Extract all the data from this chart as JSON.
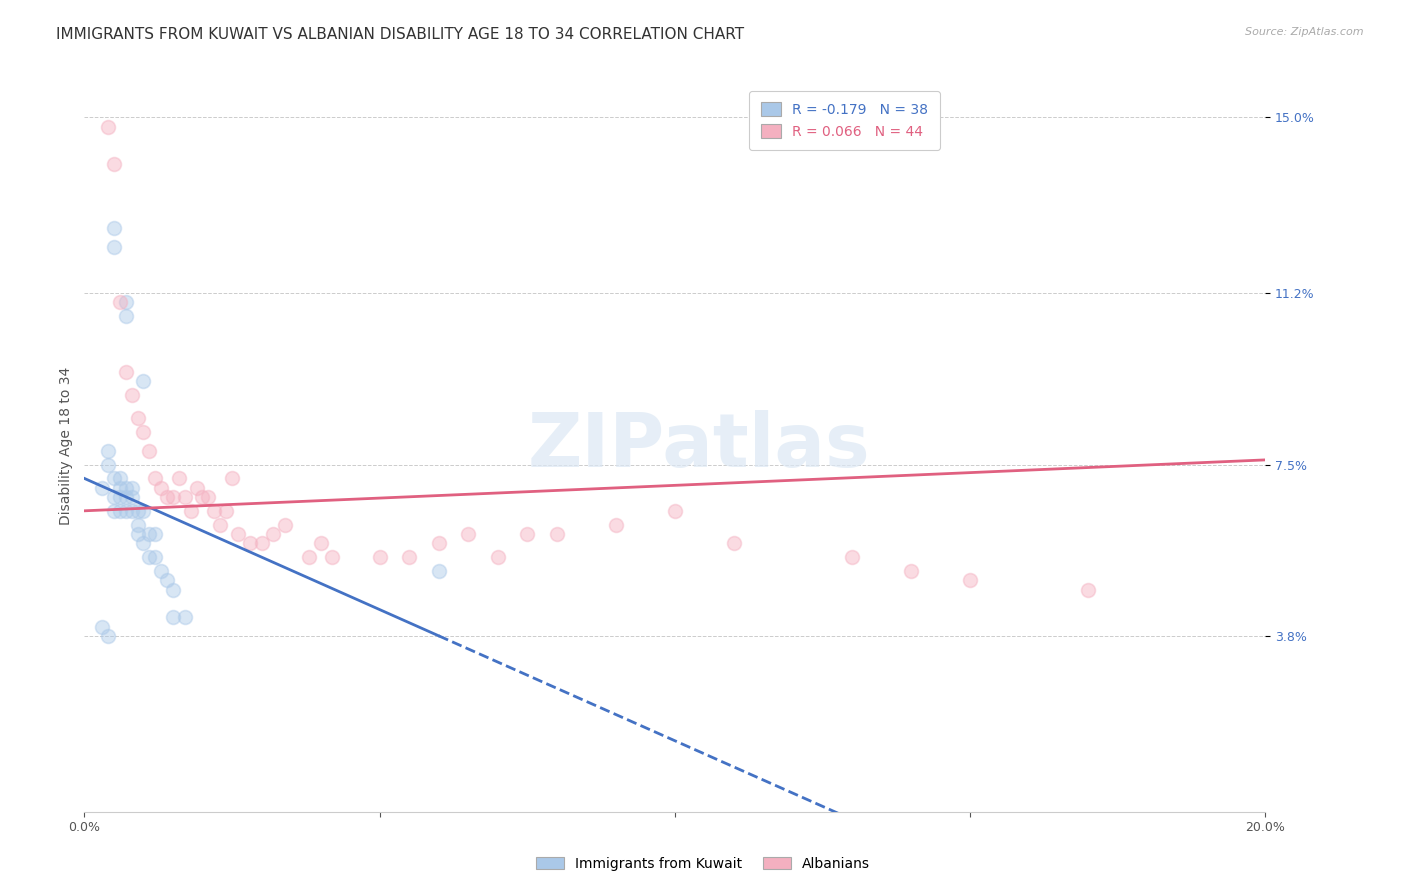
{
  "title": "IMMIGRANTS FROM KUWAIT VS ALBANIAN DISABILITY AGE 18 TO 34 CORRELATION CHART",
  "source": "Source: ZipAtlas.com",
  "ylabel": "Disability Age 18 to 34",
  "xlim": [
    0.0,
    0.2
  ],
  "ylim": [
    0.0,
    0.158
  ],
  "xticks": [
    0.0,
    0.05,
    0.1,
    0.15,
    0.2
  ],
  "xticklabels": [
    "0.0%",
    "",
    "",
    "",
    "20.0%"
  ],
  "ytick_values": [
    0.038,
    0.075,
    0.112,
    0.15
  ],
  "ytick_labels": [
    "3.8%",
    "7.5%",
    "11.2%",
    "15.0%"
  ],
  "legend_r_labels": [
    "R = -0.179   N = 38",
    "R = 0.066   N = 44"
  ],
  "legend_labels": [
    "Immigrants from Kuwait",
    "Albanians"
  ],
  "kuwait_x": [
    0.005,
    0.005,
    0.007,
    0.007,
    0.01,
    0.003,
    0.004,
    0.004,
    0.005,
    0.005,
    0.005,
    0.006,
    0.006,
    0.006,
    0.006,
    0.007,
    0.007,
    0.007,
    0.008,
    0.008,
    0.008,
    0.009,
    0.009,
    0.009,
    0.01,
    0.01,
    0.011,
    0.011,
    0.012,
    0.012,
    0.013,
    0.014,
    0.015,
    0.015,
    0.017,
    0.06,
    0.003,
    0.004
  ],
  "kuwait_y": [
    0.126,
    0.122,
    0.11,
    0.107,
    0.093,
    0.07,
    0.075,
    0.078,
    0.068,
    0.072,
    0.065,
    0.068,
    0.065,
    0.072,
    0.07,
    0.068,
    0.07,
    0.065,
    0.068,
    0.065,
    0.07,
    0.06,
    0.065,
    0.062,
    0.058,
    0.065,
    0.06,
    0.055,
    0.06,
    0.055,
    0.052,
    0.05,
    0.048,
    0.042,
    0.042,
    0.052,
    0.04,
    0.038
  ],
  "albanian_x": [
    0.004,
    0.005,
    0.006,
    0.007,
    0.008,
    0.009,
    0.01,
    0.011,
    0.012,
    0.013,
    0.014,
    0.015,
    0.016,
    0.017,
    0.018,
    0.019,
    0.02,
    0.021,
    0.022,
    0.023,
    0.024,
    0.025,
    0.026,
    0.028,
    0.03,
    0.032,
    0.034,
    0.038,
    0.04,
    0.042,
    0.05,
    0.055,
    0.06,
    0.065,
    0.07,
    0.075,
    0.08,
    0.09,
    0.1,
    0.11,
    0.13,
    0.14,
    0.15,
    0.17
  ],
  "albanian_y": [
    0.148,
    0.14,
    0.11,
    0.095,
    0.09,
    0.085,
    0.082,
    0.078,
    0.072,
    0.07,
    0.068,
    0.068,
    0.072,
    0.068,
    0.065,
    0.07,
    0.068,
    0.068,
    0.065,
    0.062,
    0.065,
    0.072,
    0.06,
    0.058,
    0.058,
    0.06,
    0.062,
    0.055,
    0.058,
    0.055,
    0.055,
    0.055,
    0.058,
    0.06,
    0.055,
    0.06,
    0.06,
    0.062,
    0.065,
    0.058,
    0.055,
    0.052,
    0.05,
    0.048
  ],
  "kuwait_color": "#aac8e8",
  "albanian_color": "#f4b0c0",
  "kuwait_line_color": "#4472c4",
  "albanian_line_color": "#e06080",
  "watermark": "ZIPatlas",
  "background_color": "#ffffff",
  "title_fontsize": 11,
  "axis_label_fontsize": 10,
  "tick_fontsize": 9,
  "marker_size": 100,
  "marker_alpha": 0.45,
  "line_width": 2.0
}
